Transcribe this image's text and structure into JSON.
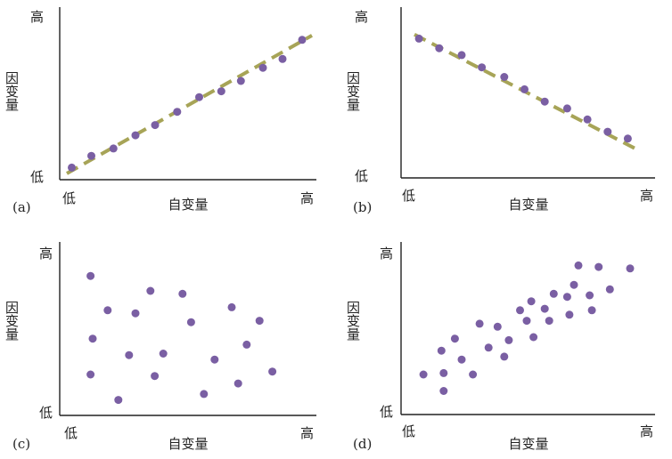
{
  "colors": {
    "point": "#7a5fa3",
    "trend": "#a7a457",
    "axis": "#222222"
  },
  "chart_data": [
    {
      "id": "a",
      "type": "scatter",
      "panel_label": "(a)",
      "xlabel": "自变量",
      "ylabel": "因变量",
      "x_low": "低",
      "x_high": "高",
      "y_low": "低",
      "y_high": "高",
      "xlim": [
        0,
        100
      ],
      "ylim": [
        0,
        100
      ],
      "trendline": [
        [
          0,
          0
        ],
        [
          100,
          94
        ]
      ],
      "points": [
        [
          2,
          4
        ],
        [
          10,
          12
        ],
        [
          19,
          17
        ],
        [
          28,
          26
        ],
        [
          36,
          33
        ],
        [
          45,
          42
        ],
        [
          54,
          52
        ],
        [
          63,
          56
        ],
        [
          71,
          63
        ],
        [
          80,
          72
        ],
        [
          88,
          78
        ],
        [
          96,
          91
        ]
      ]
    },
    {
      "id": "b",
      "type": "scatter",
      "panel_label": "(b)",
      "xlabel": "自变量",
      "ylabel": "因变量",
      "x_low": "低",
      "x_high": "高",
      "y_low": "低",
      "y_high": "高",
      "xlim": [
        0,
        100
      ],
      "ylim": [
        0,
        100
      ],
      "trendline": [
        [
          2,
          93
        ],
        [
          100,
          10
        ]
      ],
      "points": [
        [
          4,
          90
        ],
        [
          13,
          83
        ],
        [
          23,
          78
        ],
        [
          32,
          69
        ],
        [
          42,
          62
        ],
        [
          51,
          53
        ],
        [
          60,
          44
        ],
        [
          70,
          39
        ],
        [
          79,
          31
        ],
        [
          88,
          22
        ],
        [
          97,
          17
        ]
      ]
    },
    {
      "id": "c",
      "type": "scatter",
      "panel_label": "(c)",
      "xlabel": "自变量",
      "ylabel": "因变量",
      "x_low": "低",
      "x_high": "高",
      "y_low": "低",
      "y_high": "高",
      "xlim": [
        0,
        100
      ],
      "ylim": [
        0,
        100
      ],
      "points": [
        [
          9,
          88
        ],
        [
          10,
          46
        ],
        [
          9,
          22
        ],
        [
          17,
          65
        ],
        [
          22,
          5
        ],
        [
          27,
          35
        ],
        [
          30,
          63
        ],
        [
          37,
          78
        ],
        [
          39,
          21
        ],
        [
          43,
          36
        ],
        [
          52,
          76
        ],
        [
          56,
          57
        ],
        [
          62,
          9
        ],
        [
          67,
          32
        ],
        [
          75,
          67
        ],
        [
          78,
          16
        ],
        [
          82,
          42
        ],
        [
          88,
          58
        ],
        [
          94,
          24
        ]
      ]
    },
    {
      "id": "d",
      "type": "scatter",
      "panel_label": "(d)",
      "xlabel": "自变量",
      "ylabel": "因变量",
      "x_low": "低",
      "x_high": "高",
      "y_low": "低",
      "y_high": "高",
      "xlim": [
        0,
        100
      ],
      "ylim": [
        0,
        100
      ],
      "points": [
        [
          6,
          22
        ],
        [
          15,
          11
        ],
        [
          14,
          38
        ],
        [
          15,
          23
        ],
        [
          20,
          46
        ],
        [
          23,
          32
        ],
        [
          28,
          22
        ],
        [
          31,
          56
        ],
        [
          35,
          40
        ],
        [
          39,
          54
        ],
        [
          42,
          34
        ],
        [
          44,
          45
        ],
        [
          49,
          65
        ],
        [
          52,
          58
        ],
        [
          54,
          71
        ],
        [
          55,
          47
        ],
        [
          60,
          66
        ],
        [
          62,
          58
        ],
        [
          64,
          76
        ],
        [
          70,
          74
        ],
        [
          71,
          62
        ],
        [
          73,
          82
        ],
        [
          75,
          95
        ],
        [
          80,
          75
        ],
        [
          81,
          65
        ],
        [
          84,
          94
        ],
        [
          89,
          79
        ],
        [
          98,
          93
        ]
      ]
    }
  ]
}
